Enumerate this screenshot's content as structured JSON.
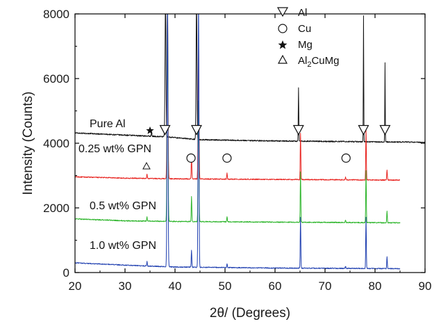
{
  "chart_data": {
    "type": "line",
    "title": "",
    "xlabel": "2θ/ (Degrees)",
    "ylabel": "Intensity (Counts)",
    "xlim": [
      20,
      90
    ],
    "ylim": [
      0,
      8000
    ],
    "x_ticks": [
      20,
      30,
      40,
      50,
      60,
      70,
      80,
      90
    ],
    "y_ticks": [
      0,
      2000,
      4000,
      6000,
      8000
    ],
    "x_tick_labels": [
      "20",
      "30",
      "40",
      "50",
      "60",
      "70",
      "80",
      "90"
    ],
    "y_tick_labels": [
      "0",
      "2000",
      "4000",
      "6000",
      "8000"
    ],
    "grid": false,
    "legend_position": "top-center",
    "legend": [
      {
        "symbol": "down-triangle",
        "label": "Al"
      },
      {
        "symbol": "circle",
        "label": "Cu"
      },
      {
        "symbol": "star",
        "label": "Mg"
      },
      {
        "symbol": "up-triangle",
        "label": "Al",
        "subscript": "2",
        "label_end": "CuMg"
      }
    ],
    "series": [
      {
        "name": "Pure Al",
        "color": "#111111",
        "x_end": 90,
        "baseline": [
          [
            20,
            4320
          ],
          [
            30,
            4250
          ],
          [
            38,
            4200
          ],
          [
            45,
            4110
          ],
          [
            60,
            4070
          ],
          [
            75,
            4050
          ],
          [
            90,
            4030
          ]
        ],
        "noise": 18,
        "peaks": [
          {
            "x": 35.3,
            "y": 4380,
            "w": 0.12
          },
          {
            "x": 38.1,
            "y": 8500,
            "w": 0.22
          },
          {
            "x": 44.3,
            "y": 8500,
            "w": 0.2
          },
          {
            "x": 64.7,
            "y": 5700,
            "w": 0.12
          },
          {
            "x": 77.7,
            "y": 7950,
            "w": 0.1
          },
          {
            "x": 82.0,
            "y": 6500,
            "w": 0.1
          }
        ]
      },
      {
        "name": "0.25 wt% GPN",
        "color": "#e8231f",
        "x_end": 85,
        "baseline": [
          [
            20,
            2960
          ],
          [
            30,
            2920
          ],
          [
            40,
            2900
          ],
          [
            60,
            2880
          ],
          [
            85,
            2860
          ]
        ],
        "noise": 15,
        "peaks": [
          {
            "x": 34.4,
            "y": 3060,
            "w": 0.12
          },
          {
            "x": 38.5,
            "y": 8500,
            "w": 0.22
          },
          {
            "x": 43.3,
            "y": 3620,
            "w": 0.14
          },
          {
            "x": 44.7,
            "y": 7350,
            "w": 0.2
          },
          {
            "x": 50.4,
            "y": 3080,
            "w": 0.14
          },
          {
            "x": 65.1,
            "y": 4320,
            "w": 0.14
          },
          {
            "x": 74.1,
            "y": 2950,
            "w": 0.14
          },
          {
            "x": 78.2,
            "y": 4420,
            "w": 0.14
          },
          {
            "x": 82.4,
            "y": 3180,
            "w": 0.14
          }
        ]
      },
      {
        "name": "0.5 wt% GPN",
        "color": "#2db52b",
        "x_end": 85,
        "baseline": [
          [
            20,
            1660
          ],
          [
            30,
            1600
          ],
          [
            40,
            1580
          ],
          [
            60,
            1560
          ],
          [
            85,
            1540
          ]
        ],
        "noise": 15,
        "peaks": [
          {
            "x": 34.4,
            "y": 1720,
            "w": 0.12
          },
          {
            "x": 38.5,
            "y": 8500,
            "w": 0.22
          },
          {
            "x": 43.3,
            "y": 2350,
            "w": 0.14
          },
          {
            "x": 44.7,
            "y": 5300,
            "w": 0.2
          },
          {
            "x": 50.4,
            "y": 1730,
            "w": 0.14
          },
          {
            "x": 65.1,
            "y": 3100,
            "w": 0.14
          },
          {
            "x": 74.1,
            "y": 1620,
            "w": 0.14
          },
          {
            "x": 78.2,
            "y": 3150,
            "w": 0.14
          },
          {
            "x": 82.4,
            "y": 1900,
            "w": 0.14
          }
        ]
      },
      {
        "name": "1.0 wt% GPN",
        "color": "#1f3fb0",
        "x_end": 85,
        "baseline": [
          [
            20,
            300
          ],
          [
            30,
            230
          ],
          [
            40,
            170
          ],
          [
            60,
            140
          ],
          [
            85,
            120
          ]
        ],
        "noise": 14,
        "peaks": [
          {
            "x": 34.4,
            "y": 350,
            "w": 0.12
          },
          {
            "x": 38.5,
            "y": 8500,
            "w": 0.22
          },
          {
            "x": 43.3,
            "y": 700,
            "w": 0.14
          },
          {
            "x": 44.7,
            "y": 8500,
            "w": 0.2
          },
          {
            "x": 50.4,
            "y": 280,
            "w": 0.14
          },
          {
            "x": 65.1,
            "y": 1700,
            "w": 0.14
          },
          {
            "x": 74.1,
            "y": 200,
            "w": 0.14
          },
          {
            "x": 78.2,
            "y": 1700,
            "w": 0.14
          },
          {
            "x": 82.4,
            "y": 480,
            "w": 0.14
          }
        ]
      }
    ],
    "annotations": [
      {
        "symbol": "down-triangle",
        "x": 38.0,
        "y": 4420
      },
      {
        "symbol": "down-triangle",
        "x": 44.3,
        "y": 4420
      },
      {
        "symbol": "down-triangle",
        "x": 64.7,
        "y": 4420
      },
      {
        "symbol": "down-triangle",
        "x": 77.7,
        "y": 4420
      },
      {
        "symbol": "down-triangle",
        "x": 82.0,
        "y": 4420
      },
      {
        "symbol": "star",
        "x": 35.0,
        "y": 4390
      },
      {
        "symbol": "up-triangle",
        "x": 34.3,
        "y": 3290
      },
      {
        "symbol": "circle",
        "x": 43.2,
        "y": 3540
      },
      {
        "symbol": "circle",
        "x": 50.4,
        "y": 3540
      },
      {
        "symbol": "circle",
        "x": 74.2,
        "y": 3540
      }
    ]
  }
}
